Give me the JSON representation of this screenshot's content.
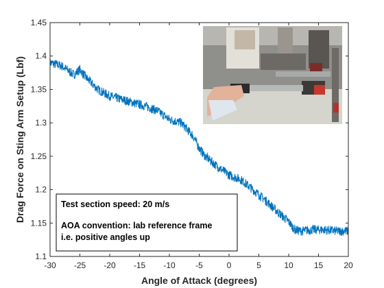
{
  "chart_data": {
    "type": "line",
    "title": "",
    "xlabel": "Angle of Attack (degrees)",
    "ylabel": "Drag Force on Sting Arm Setup (Lbf)",
    "xlim": [
      -30,
      20
    ],
    "ylim": [
      1.1,
      1.45
    ],
    "xticks": [
      -30,
      -25,
      -20,
      -15,
      -10,
      -5,
      0,
      5,
      10,
      15,
      20
    ],
    "xtick_labels": [
      "-30",
      "-25",
      "-20",
      "-15",
      "-10",
      "-5",
      "0",
      "5",
      "10",
      "15",
      "20"
    ],
    "yticks": [
      1.1,
      1.15,
      1.2,
      1.25,
      1.3,
      1.35,
      1.4,
      1.45
    ],
    "ytick_labels": [
      "1.1",
      "1.15",
      "1.2",
      "1.25",
      "1.3",
      "1.35",
      "1.4",
      "1.45"
    ],
    "grid": false,
    "line_color": "#0072BD",
    "series": [
      {
        "name": "",
        "x": [
          -30,
          -28,
          -26,
          -25,
          -24,
          -22,
          -20,
          -18,
          -16,
          -14,
          -12,
          -10,
          -8,
          -6,
          -5,
          -4,
          -2,
          0,
          2,
          4,
          6,
          8,
          10,
          11,
          12,
          14,
          16,
          18,
          20
        ],
        "y": [
          1.39,
          1.385,
          1.372,
          1.38,
          1.368,
          1.35,
          1.34,
          1.335,
          1.33,
          1.325,
          1.318,
          1.305,
          1.3,
          1.28,
          1.262,
          1.25,
          1.235,
          1.222,
          1.215,
          1.2,
          1.185,
          1.168,
          1.152,
          1.14,
          1.138,
          1.14,
          1.14,
          1.138,
          1.138
        ]
      }
    ],
    "annotation": {
      "line1": "Test section speed: 20 m/s",
      "line2": "AOA convention: lab reference frame",
      "line3": "i.e. positive angles up"
    },
    "inset_image": "photo-of-sting-arm-setup"
  }
}
